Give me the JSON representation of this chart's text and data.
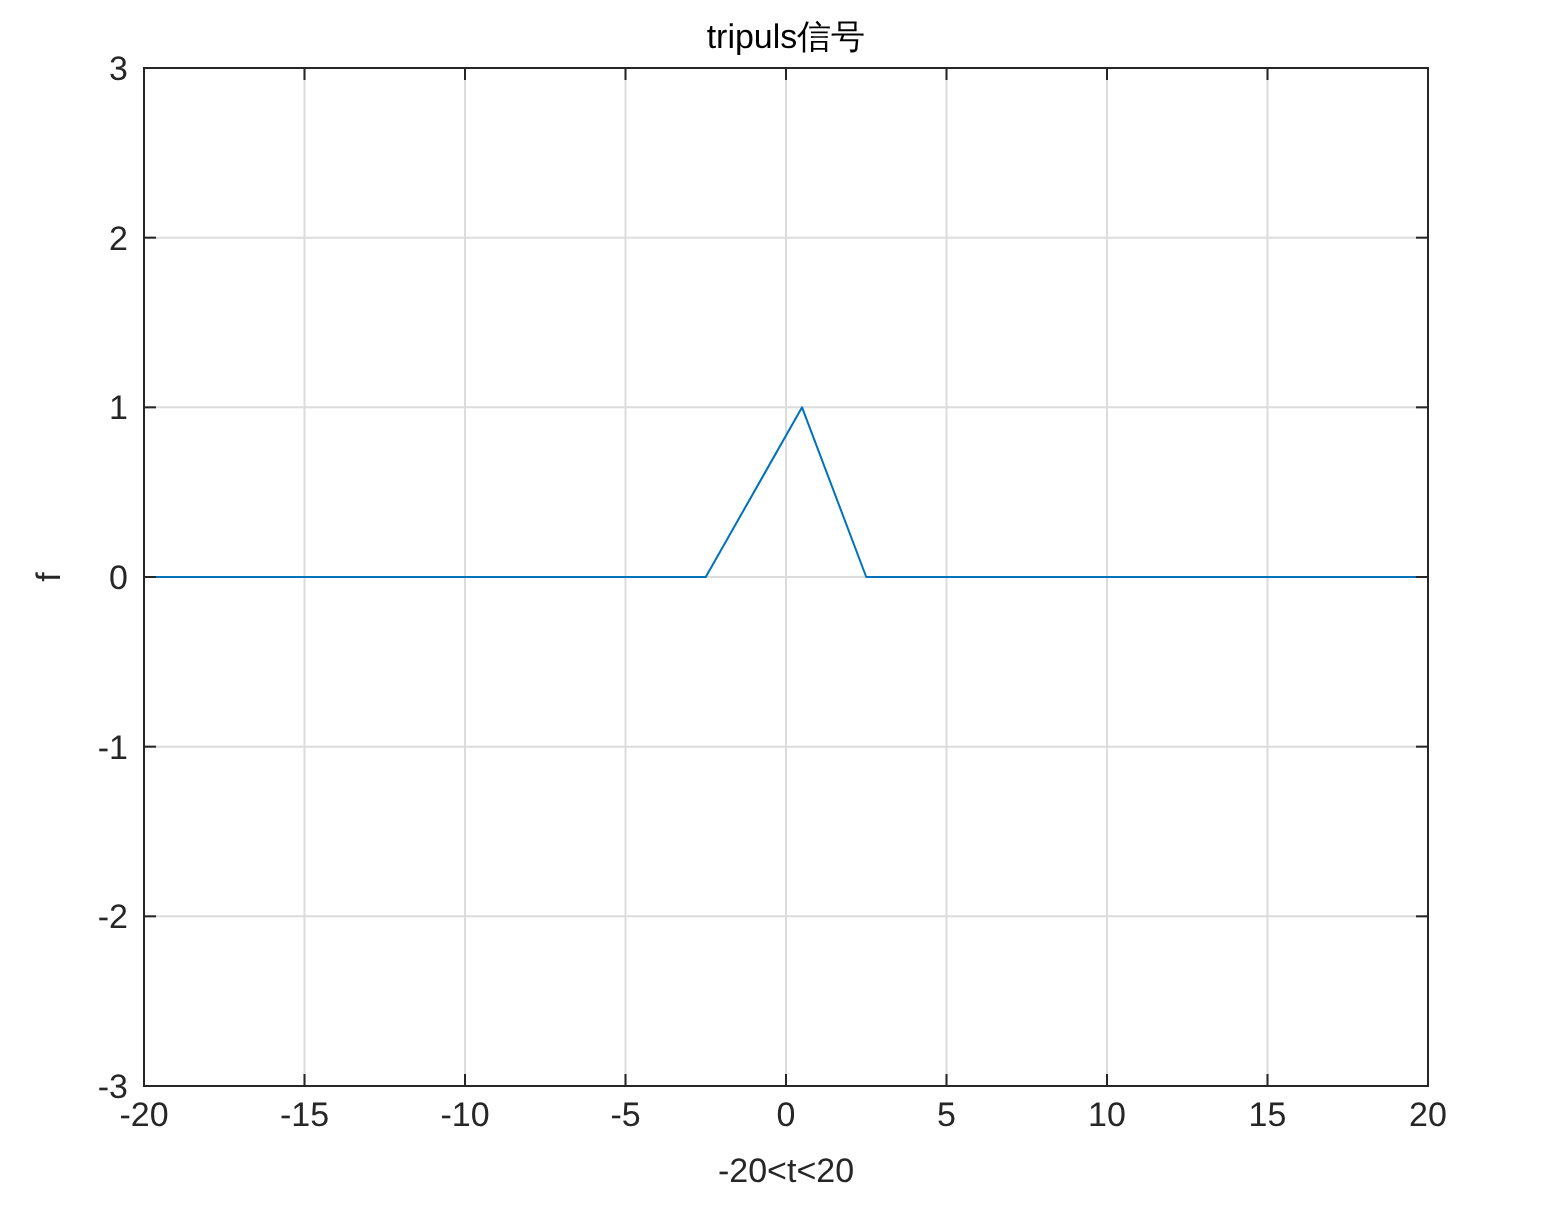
{
  "chart_data": {
    "type": "line",
    "title": "tripuls信号",
    "xlabel": "-20<t<20",
    "ylabel": "f",
    "x": [
      -20,
      -2.5,
      0.5,
      2.5,
      20
    ],
    "series": [
      {
        "color": "#0072bd",
        "values": [
          0,
          0,
          1,
          0,
          0
        ]
      }
    ],
    "xlim": [
      -20,
      20
    ],
    "xticks": [
      -20,
      -15,
      -10,
      -5,
      0,
      5,
      10,
      15,
      20
    ],
    "ylim": [
      -3,
      3
    ],
    "yticks": [
      -3,
      -2,
      -1,
      0,
      1,
      2,
      3
    ],
    "grid": true,
    "marker": "none",
    "line_style": "solid"
  }
}
